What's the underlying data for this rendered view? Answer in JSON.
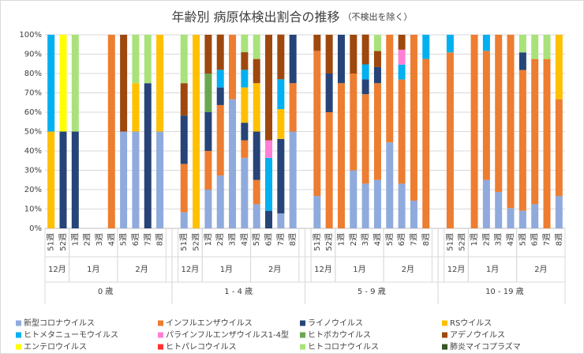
{
  "chart_data": {
    "type": "stacked_bar",
    "title": "年齢別 病原体検出割合の推移",
    "subtitle": "（不検出を除く）",
    "groups": [
      {
        "name": "0 歳",
        "months": [
          {
            "name": "12月",
            "weeks": [
              "51週",
              "52週"
            ]
          },
          {
            "name": "1月",
            "weeks": [
              "1週",
              "2週",
              "3週",
              "4週"
            ]
          },
          {
            "name": "2月",
            "weeks": [
              "5週",
              "6週",
              "7週",
              "8週"
            ]
          }
        ]
      },
      {
        "name": "1 - 4 歳",
        "months": [
          {
            "name": "12月",
            "weeks": [
              "51週",
              "52週"
            ]
          },
          {
            "name": "1月",
            "weeks": [
              "1週",
              "2週",
              "3週",
              "4週"
            ]
          },
          {
            "name": "2月",
            "weeks": [
              "5週",
              "6週",
              "7週",
              "8週"
            ]
          }
        ]
      },
      {
        "name": "5 - 9 歳",
        "months": [
          {
            "name": "12月",
            "weeks": [
              "51週",
              "52週"
            ]
          },
          {
            "name": "1月",
            "weeks": [
              "1週",
              "2週",
              "3週",
              "4週"
            ]
          },
          {
            "name": "2月",
            "weeks": [
              "5週",
              "6週",
              "7週",
              "8週"
            ]
          }
        ]
      },
      {
        "name": "10 - 19 歳",
        "months": [
          {
            "name": "12月",
            "weeks": [
              "51週",
              "52週"
            ]
          },
          {
            "name": "1月",
            "weeks": [
              "1週",
              "2週",
              "3週",
              "4週"
            ]
          },
          {
            "name": "2月",
            "weeks": [
              "5週",
              "6週",
              "7週",
              "8週"
            ]
          }
        ]
      }
    ],
    "ylim": [
      0,
      100
    ],
    "yticks": [
      {
        "value": 0,
        "label": "0%"
      },
      {
        "value": 10,
        "label": "10%"
      },
      {
        "value": 20,
        "label": "20%"
      },
      {
        "value": 30,
        "label": "30%"
      },
      {
        "value": 40,
        "label": "40%"
      },
      {
        "value": 50,
        "label": "50%"
      },
      {
        "value": 60,
        "label": "60%"
      },
      {
        "value": 70,
        "label": "70%"
      },
      {
        "value": 80,
        "label": "80%"
      },
      {
        "value": 90,
        "label": "90%"
      },
      {
        "value": 100,
        "label": "100%"
      }
    ],
    "grid": true,
    "legend": "bottom",
    "series": [
      {
        "name": "新型コロナウイルス",
        "color": "#8faadc",
        "values": [
          0,
          0,
          0,
          0,
          0,
          0,
          50,
          50,
          0,
          50,
          8.3,
          0,
          20,
          27.3,
          66.7,
          36.4,
          12.5,
          0,
          7.7,
          50,
          16.7,
          0,
          0,
          30,
          23.1,
          25,
          44.4,
          23.1,
          14.3,
          0,
          0,
          0,
          0,
          25,
          18.8,
          10.5,
          9.1,
          12.5,
          0,
          16.7
        ]
      },
      {
        "name": "インフルエンザウイルス",
        "color": "#ed7d31",
        "values": [
          0,
          0,
          0,
          0,
          0,
          100,
          0,
          0,
          0,
          0,
          25,
          0,
          20,
          36.4,
          33.3,
          9.1,
          12.5,
          0,
          0,
          25,
          75,
          60,
          75,
          50,
          46.2,
          50,
          55.6,
          53.8,
          85.7,
          87.5,
          90.9,
          0,
          100,
          66.7,
          81.2,
          89.5,
          72.7,
          75,
          87.5,
          50
        ]
      },
      {
        "name": "ライノウイルス",
        "color": "#264478",
        "values": [
          0,
          50,
          50,
          0,
          0,
          0,
          0,
          0,
          75,
          0,
          25,
          0,
          20,
          9.1,
          0,
          9.1,
          25,
          9.1,
          38.5,
          25,
          0,
          20,
          25,
          0,
          7.7,
          8.3,
          0,
          0,
          0,
          0,
          0,
          0,
          0,
          0,
          0,
          0,
          9.1,
          0,
          0,
          0
        ]
      },
      {
        "name": "RSウイルス",
        "color": "#ffc000",
        "values": [
          50,
          0,
          0,
          0,
          0,
          0,
          0,
          25,
          0,
          50,
          0,
          100,
          0,
          0,
          0,
          18.2,
          25,
          0,
          15.4,
          0,
          0,
          0,
          0,
          0,
          0,
          0,
          0,
          0,
          0,
          0,
          0,
          0,
          0,
          0,
          0,
          0,
          0,
          0,
          0,
          33.3
        ]
      },
      {
        "name": "ヒトメタニューモウイルス",
        "color": "#00b0f0",
        "values": [
          50,
          0,
          0,
          0,
          0,
          0,
          0,
          0,
          0,
          0,
          0,
          0,
          0,
          9.1,
          0,
          9.1,
          0,
          27.3,
          15.4,
          0,
          0,
          0,
          0,
          0,
          7.7,
          0,
          0,
          7.7,
          0,
          12.5,
          9.1,
          0,
          0,
          8.3,
          0,
          0,
          0,
          0,
          0,
          0
        ]
      },
      {
        "name": "パラインフルエンザウイルス1-4型",
        "color": "#ff7fd4",
        "values": [
          0,
          0,
          0,
          0,
          0,
          0,
          0,
          0,
          0,
          0,
          0,
          0,
          0,
          0,
          0,
          0,
          0,
          9.1,
          0,
          0,
          0,
          0,
          0,
          0,
          0,
          0,
          0,
          7.7,
          0,
          0,
          0,
          0,
          0,
          0,
          0,
          0,
          0,
          0,
          0,
          0
        ]
      },
      {
        "name": "ヒトボカウイルス",
        "color": "#6aa84f",
        "values": [
          0,
          0,
          0,
          0,
          0,
          0,
          0,
          0,
          0,
          0,
          0,
          0,
          20,
          0,
          0,
          0,
          0,
          0,
          0,
          0,
          0,
          0,
          0,
          0,
          0,
          0,
          0,
          0,
          0,
          0,
          0,
          0,
          0,
          0,
          0,
          0,
          0,
          0,
          0,
          0
        ]
      },
      {
        "name": "アデノウイルス",
        "color": "#9e480e",
        "values": [
          0,
          0,
          0,
          0,
          0,
          0,
          50,
          0,
          0,
          0,
          16.7,
          0,
          20,
          18.2,
          0,
          9.1,
          12.5,
          54.5,
          23.1,
          0,
          8.3,
          20,
          0,
          20,
          15.4,
          8.3,
          0,
          7.7,
          0,
          0,
          0,
          0,
          0,
          0,
          0,
          0,
          0,
          0,
          0,
          0
        ]
      },
      {
        "name": "エンテロウイルス",
        "color": "#ffff00",
        "values": [
          0,
          50,
          0,
          0,
          0,
          0,
          0,
          0,
          0,
          0,
          0,
          0,
          0,
          0,
          0,
          0,
          0,
          0,
          0,
          0,
          0,
          0,
          0,
          0,
          0,
          0,
          0,
          0,
          0,
          0,
          0,
          0,
          0,
          0,
          0,
          0,
          0,
          0,
          0,
          0
        ]
      },
      {
        "name": "ヒトパレコウイルス",
        "color": "#ff3333",
        "values": [
          0,
          0,
          0,
          0,
          0,
          0,
          0,
          0,
          0,
          0,
          0,
          0,
          0,
          0,
          0,
          0,
          0,
          0,
          0,
          0,
          0,
          0,
          0,
          0,
          0,
          0,
          0,
          0,
          0,
          0,
          0,
          0,
          0,
          0,
          0,
          0,
          0,
          0,
          0,
          0
        ]
      },
      {
        "name": "ヒトコロナウイルス",
        "color": "#a9e27a",
        "values": [
          0,
          0,
          50,
          0,
          0,
          0,
          0,
          25,
          25,
          0,
          25,
          0,
          0,
          0,
          0,
          9.1,
          12.5,
          0,
          0,
          0,
          0,
          0,
          0,
          0,
          0,
          8.3,
          0,
          0,
          0,
          0,
          0,
          0,
          0,
          0,
          0,
          0,
          9.1,
          12.5,
          12.5,
          0
        ]
      },
      {
        "name": "肺炎マイコプラズマ",
        "color": "#375623",
        "values": [
          0,
          0,
          0,
          0,
          0,
          0,
          0,
          0,
          0,
          0,
          0,
          0,
          0,
          0,
          0,
          0,
          0,
          0,
          0,
          0,
          0,
          0,
          0,
          0,
          0,
          0,
          0,
          0,
          0,
          0,
          0,
          0,
          0,
          0,
          0,
          0,
          0,
          0,
          0,
          0
        ]
      }
    ]
  }
}
